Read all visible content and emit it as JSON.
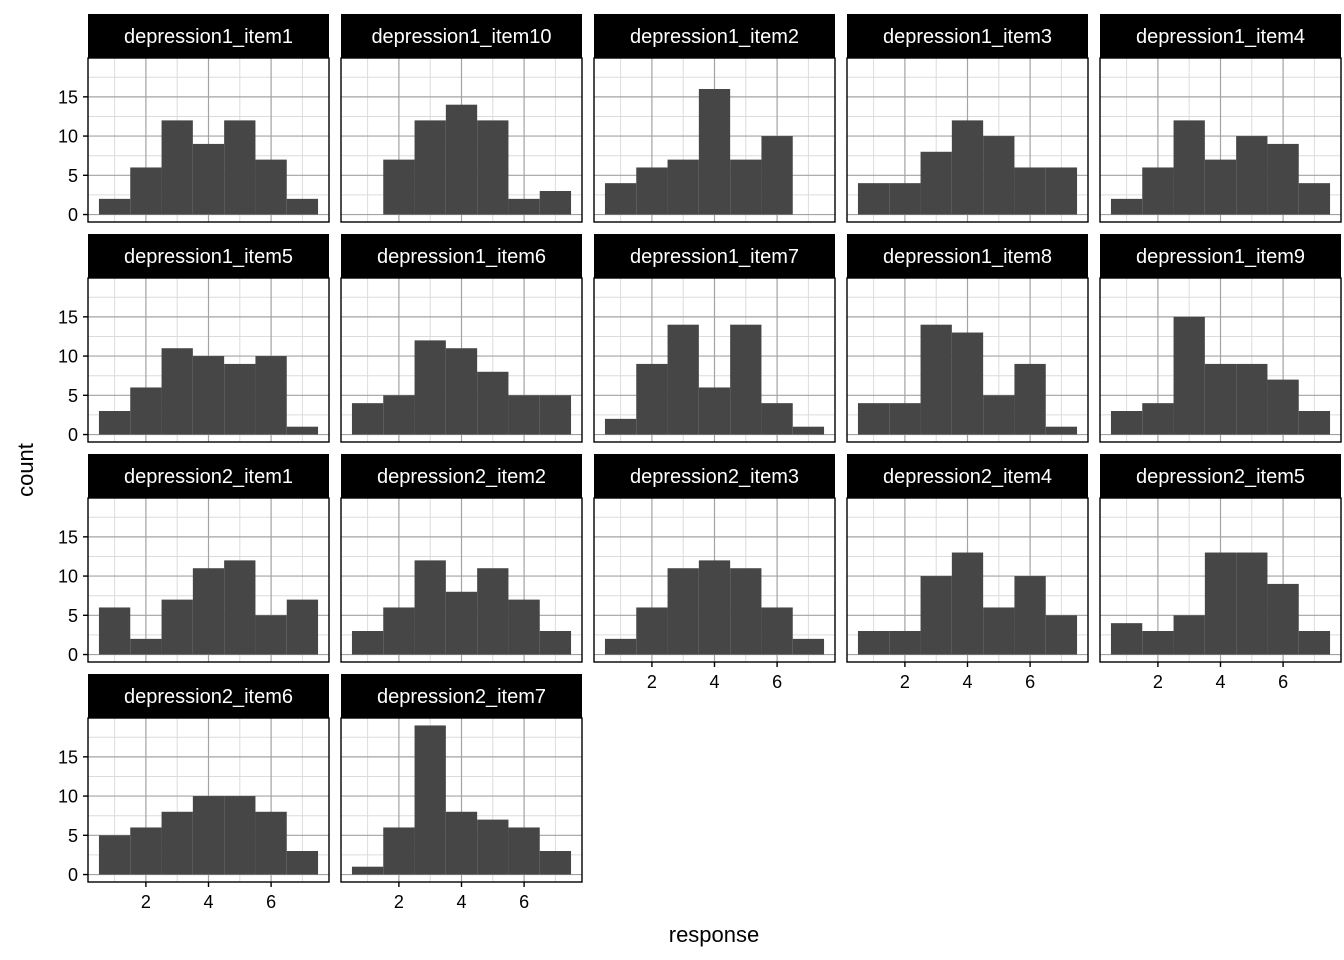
{
  "chart_data": {
    "type": "bar",
    "subtype": "faceted-histograms",
    "title": "",
    "xlabel": "response",
    "ylabel": "count",
    "legend": "none",
    "grid": "on",
    "facet_columns": 5,
    "bin_centers": [
      1,
      2,
      3,
      4,
      5,
      6,
      7
    ],
    "bin_width": 1,
    "x_ticks": [
      2,
      4,
      6
    ],
    "y_ticks": [
      0,
      5,
      10,
      15
    ],
    "x_minor": [
      1,
      3,
      5,
      7
    ],
    "y_minor": [
      2.5,
      7.5,
      12.5,
      17.5
    ],
    "x_range": [
      0.15,
      7.85
    ],
    "y_range": [
      -0.95,
      19.95
    ],
    "facets": [
      {
        "label": "depression1_item1",
        "counts": [
          2,
          6,
          12,
          9,
          12,
          7,
          2
        ]
      },
      {
        "label": "depression1_item10",
        "counts": [
          0,
          7,
          12,
          14,
          12,
          2,
          3
        ]
      },
      {
        "label": "depression1_item2",
        "counts": [
          4,
          6,
          7,
          16,
          7,
          10,
          0
        ]
      },
      {
        "label": "depression1_item3",
        "counts": [
          4,
          4,
          8,
          12,
          10,
          6,
          6
        ]
      },
      {
        "label": "depression1_item4",
        "counts": [
          2,
          6,
          12,
          7,
          10,
          9,
          4
        ]
      },
      {
        "label": "depression1_item5",
        "counts": [
          3,
          6,
          11,
          10,
          9,
          10,
          1
        ]
      },
      {
        "label": "depression1_item6",
        "counts": [
          4,
          5,
          12,
          11,
          8,
          5,
          5
        ]
      },
      {
        "label": "depression1_item7",
        "counts": [
          2,
          9,
          14,
          6,
          14,
          4,
          1
        ]
      },
      {
        "label": "depression1_item8",
        "counts": [
          4,
          4,
          14,
          13,
          5,
          9,
          1
        ]
      },
      {
        "label": "depression1_item9",
        "counts": [
          3,
          4,
          15,
          9,
          9,
          7,
          3
        ]
      },
      {
        "label": "depression2_item1",
        "counts": [
          6,
          2,
          7,
          11,
          12,
          5,
          7
        ]
      },
      {
        "label": "depression2_item2",
        "counts": [
          3,
          6,
          12,
          8,
          11,
          7,
          3
        ]
      },
      {
        "label": "depression2_item3",
        "counts": [
          2,
          6,
          11,
          12,
          11,
          6,
          2
        ]
      },
      {
        "label": "depression2_item4",
        "counts": [
          3,
          3,
          10,
          13,
          6,
          10,
          5
        ]
      },
      {
        "label": "depression2_item5",
        "counts": [
          4,
          3,
          5,
          13,
          13,
          9,
          3
        ]
      },
      {
        "label": "depression2_item6",
        "counts": [
          5,
          6,
          8,
          10,
          10,
          8,
          3
        ]
      },
      {
        "label": "depression2_item7",
        "counts": [
          1,
          6,
          19,
          8,
          7,
          6,
          3
        ]
      }
    ],
    "colors": {
      "bar_fill": "#464646",
      "strip_background": "#000000",
      "strip_text": "#ffffff",
      "panel_background": "#ffffff",
      "panel_border": "#000000",
      "grid_major": "#a3a3a3",
      "grid_minor": "#dcdcdc",
      "tick_mark": "#000000",
      "tick_label": "#000000"
    }
  }
}
